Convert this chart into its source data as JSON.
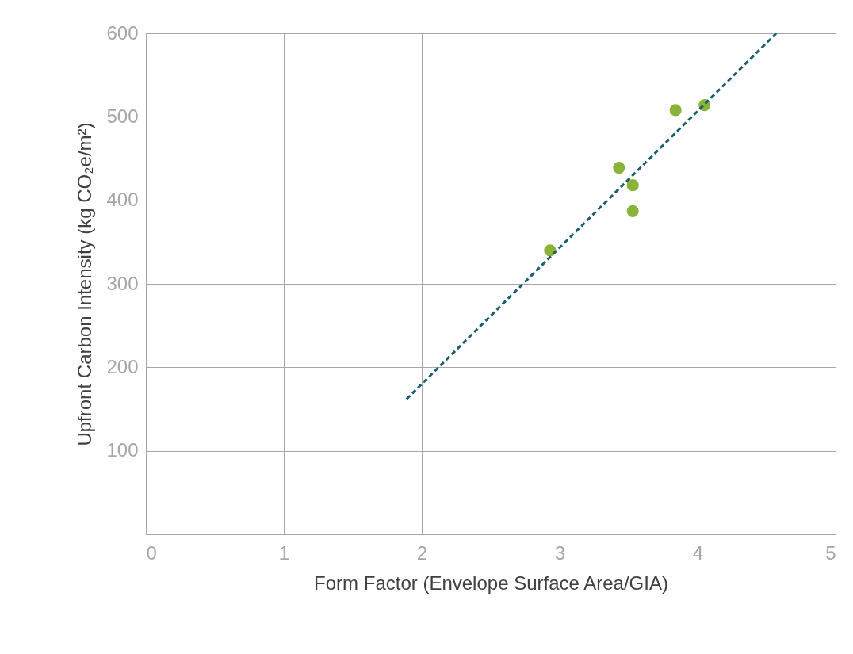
{
  "chart_data": {
    "type": "scatter",
    "xlabel": "Form Factor (Envelope Surface Area/GIA)",
    "ylabel": "Upfront Carbon Intensity (kg CO₂e/m²)",
    "xlim": [
      0,
      5
    ],
    "xticks": [
      0,
      1,
      2,
      3,
      4,
      5
    ],
    "ylim": [
      0,
      600
    ],
    "yticks": [
      100,
      200,
      300,
      400,
      500,
      600
    ],
    "grid": true,
    "series": [
      {
        "color": "#8ab33a",
        "marker": "circle",
        "x": [
          2.93,
          3.43,
          3.53,
          3.53,
          3.84,
          4.05
        ],
        "values": [
          340,
          439,
          418,
          387,
          508,
          514
        ]
      },
      {
        "type": "line",
        "color": "#1a5f6e",
        "line_style": "dashed",
        "x": [
          1.89,
          4.57
        ],
        "values": [
          162,
          600
        ]
      }
    ]
  }
}
